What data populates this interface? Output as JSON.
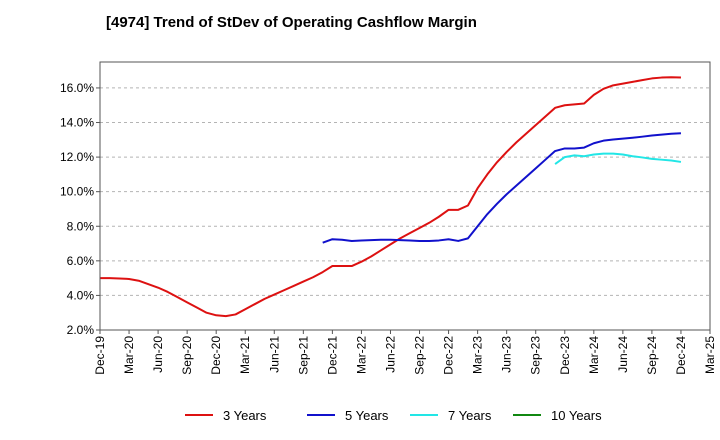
{
  "chart_data": {
    "type": "line",
    "title": "[4974]  Trend of StDev of Operating Cashflow Margin",
    "xlabel": "",
    "ylabel": "",
    "x_ticks": [
      "Dec-19",
      "Mar-20",
      "Jun-20",
      "Sep-20",
      "Dec-20",
      "Mar-21",
      "Jun-21",
      "Sep-21",
      "Dec-21",
      "Mar-22",
      "Jun-22",
      "Sep-22",
      "Dec-22",
      "Mar-23",
      "Jun-23",
      "Sep-23",
      "Dec-23",
      "Mar-24",
      "Jun-24",
      "Sep-24",
      "Dec-24",
      "Mar-25"
    ],
    "y_ticks": [
      "2.0%",
      "4.0%",
      "6.0%",
      "8.0%",
      "10.0%",
      "12.0%",
      "14.0%",
      "16.0%"
    ],
    "ylim": [
      2.0,
      17.5
    ],
    "grid": "horizontal dashed",
    "legend_position": "bottom",
    "series": [
      {
        "name": "3 Years",
        "color": "#dd1111",
        "x": [
          "Dec-19",
          "Jan-20",
          "Feb-20",
          "Mar-20",
          "Apr-20",
          "May-20",
          "Jun-20",
          "Jul-20",
          "Aug-20",
          "Sep-20",
          "Oct-20",
          "Nov-20",
          "Dec-20",
          "Jan-21",
          "Feb-21",
          "Mar-21",
          "Apr-21",
          "May-21",
          "Jun-21",
          "Jul-21",
          "Aug-21",
          "Sep-21",
          "Oct-21",
          "Nov-21",
          "Dec-21",
          "Jan-22",
          "Feb-22",
          "Mar-22",
          "Apr-22",
          "May-22",
          "Jun-22",
          "Jul-22",
          "Aug-22",
          "Sep-22",
          "Oct-22",
          "Nov-22",
          "Dec-22",
          "Jan-23",
          "Feb-23",
          "Mar-23",
          "Apr-23",
          "May-23",
          "Jun-23",
          "Jul-23",
          "Aug-23",
          "Sep-23",
          "Oct-23",
          "Nov-23",
          "Dec-23",
          "Jan-24",
          "Feb-24",
          "Mar-24",
          "Apr-24",
          "May-24",
          "Jun-24",
          "Jul-24",
          "Aug-24",
          "Sep-24",
          "Oct-24",
          "Nov-24",
          "Dec-24"
        ],
        "values": [
          5.0,
          5.0,
          4.98,
          4.95,
          4.85,
          4.65,
          4.45,
          4.2,
          3.9,
          3.6,
          3.3,
          3.0,
          2.85,
          2.8,
          2.9,
          3.2,
          3.5,
          3.8,
          4.05,
          4.3,
          4.55,
          4.8,
          5.05,
          5.35,
          5.7,
          5.7,
          5.7,
          5.95,
          6.25,
          6.6,
          6.95,
          7.3,
          7.6,
          7.9,
          8.2,
          8.55,
          8.95,
          8.95,
          9.2,
          10.2,
          11.0,
          11.7,
          12.3,
          12.85,
          13.35,
          13.85,
          14.35,
          14.85,
          15.0,
          15.05,
          15.1,
          15.6,
          15.95,
          16.15,
          16.25,
          16.35,
          16.45,
          16.55,
          16.6,
          16.62,
          16.6
        ]
      },
      {
        "name": "5 Years",
        "color": "#1111cc",
        "x": [
          "Nov-21",
          "Dec-21",
          "Jan-22",
          "Feb-22",
          "Mar-22",
          "Apr-22",
          "May-22",
          "Jun-22",
          "Jul-22",
          "Aug-22",
          "Sep-22",
          "Oct-22",
          "Nov-22",
          "Dec-22",
          "Jan-23",
          "Feb-23",
          "Mar-23",
          "Apr-23",
          "May-23",
          "Jun-23",
          "Jul-23",
          "Aug-23",
          "Sep-23",
          "Oct-23",
          "Nov-23",
          "Dec-23",
          "Jan-24",
          "Feb-24",
          "Mar-24",
          "Apr-24",
          "May-24",
          "Jun-24",
          "Jul-24",
          "Aug-24",
          "Sep-24",
          "Oct-24",
          "Nov-24",
          "Dec-24"
        ],
        "values": [
          7.05,
          7.25,
          7.22,
          7.15,
          7.18,
          7.2,
          7.22,
          7.22,
          7.2,
          7.18,
          7.15,
          7.15,
          7.18,
          7.25,
          7.15,
          7.3,
          8.0,
          8.7,
          9.3,
          9.85,
          10.35,
          10.85,
          11.35,
          11.85,
          12.35,
          12.5,
          12.5,
          12.55,
          12.8,
          12.95,
          13.02,
          13.07,
          13.12,
          13.18,
          13.25,
          13.3,
          13.35,
          13.38
        ]
      },
      {
        "name": "7 Years",
        "color": "#22e6e6",
        "x": [
          "Nov-23",
          "Dec-23",
          "Jan-24",
          "Feb-24",
          "Mar-24",
          "Apr-24",
          "May-24",
          "Jun-24",
          "Jul-24",
          "Aug-24",
          "Sep-24",
          "Oct-24",
          "Nov-24",
          "Dec-24"
        ],
        "values": [
          11.6,
          12.0,
          12.1,
          12.05,
          12.15,
          12.2,
          12.2,
          12.15,
          12.05,
          11.98,
          11.9,
          11.85,
          11.8,
          11.72
        ]
      },
      {
        "name": "10 Years",
        "color": "#118811",
        "x": [],
        "values": []
      }
    ]
  }
}
